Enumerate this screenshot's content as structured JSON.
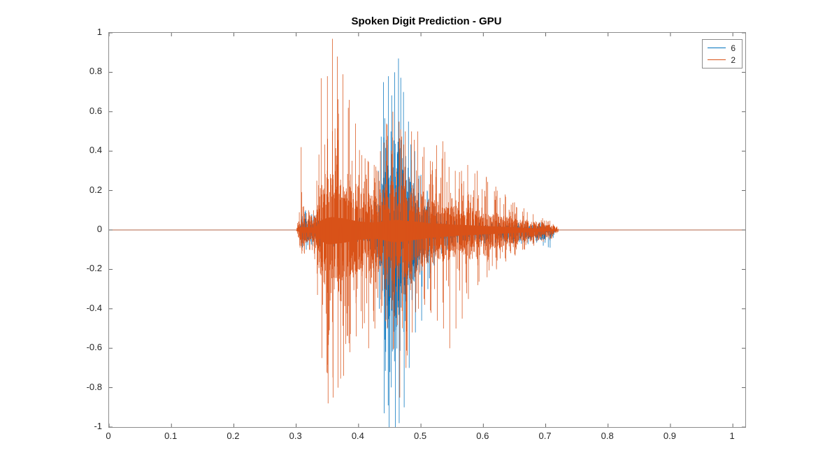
{
  "chart_data": {
    "type": "line",
    "subtype": "audio-waveform",
    "title": "Spoken Digit Prediction - GPU",
    "xlabel": "",
    "ylabel": "",
    "grid": false,
    "x_axis": {
      "min": 0,
      "max": 1.02,
      "tick_values": [
        0,
        0.1,
        0.2,
        0.3,
        0.4,
        0.5,
        0.6,
        0.7,
        0.8,
        0.9,
        1.0
      ],
      "tick_labels": [
        "0",
        "0.1",
        "0.2",
        "0.3",
        "0.4",
        "0.5",
        "0.6",
        "0.7",
        "0.8",
        "0.9",
        "1"
      ]
    },
    "y_axis": {
      "min": -1,
      "max": 1,
      "tick_values": [
        -1,
        -0.8,
        -0.6,
        -0.4,
        -0.2,
        0,
        0.2,
        0.4,
        0.6,
        0.8,
        1
      ],
      "tick_labels": [
        "-1",
        "-0.8",
        "-0.6",
        "-0.4",
        "-0.2",
        "0",
        "0.2",
        "0.4",
        "0.6",
        "0.8",
        "1"
      ]
    },
    "legend": {
      "position": "top-right",
      "entries": [
        {
          "label": "6",
          "color": "#0072BD"
        },
        {
          "label": "2",
          "color": "#D95319"
        }
      ]
    },
    "envelope_format": [
      "x",
      "dense_max",
      "dense_min",
      "peak_max",
      "peak_min"
    ],
    "series": [
      {
        "name": "6",
        "color": "#0072BD",
        "baseline_value": 0,
        "active_range": [
          0.304,
          0.716
        ],
        "envelope_points": [
          [
            0.304,
            0,
            0,
            0,
            0
          ],
          [
            0.308,
            0.05,
            -0.05,
            0.08,
            -0.09
          ],
          [
            0.315,
            0.06,
            -0.06,
            0.1,
            -0.1
          ],
          [
            0.325,
            0.05,
            -0.05,
            0.08,
            -0.08
          ],
          [
            0.34,
            0.04,
            -0.05,
            0.06,
            -0.09
          ],
          [
            0.37,
            0.03,
            -0.04,
            0.05,
            -0.1
          ],
          [
            0.4,
            0.03,
            -0.05,
            0.06,
            -0.11
          ],
          [
            0.42,
            0.05,
            -0.06,
            0.1,
            -0.14
          ],
          [
            0.432,
            0.1,
            -0.14,
            0.3,
            -0.4
          ],
          [
            0.44,
            0.28,
            -0.38,
            0.75,
            -0.93
          ],
          [
            0.448,
            0.38,
            -0.48,
            0.78,
            -1.0
          ],
          [
            0.458,
            0.45,
            -0.52,
            0.8,
            -1.0
          ],
          [
            0.464,
            0.45,
            -0.5,
            0.87,
            -0.98
          ],
          [
            0.472,
            0.35,
            -0.42,
            0.7,
            -0.9
          ],
          [
            0.48,
            0.26,
            -0.32,
            0.55,
            -0.7
          ],
          [
            0.49,
            0.18,
            -0.24,
            0.4,
            -0.52
          ],
          [
            0.5,
            0.12,
            -0.18,
            0.28,
            -0.46
          ],
          [
            0.51,
            0.09,
            -0.12,
            0.2,
            -0.3
          ],
          [
            0.52,
            0.06,
            -0.09,
            0.12,
            -0.18
          ],
          [
            0.532,
            0.04,
            -0.07,
            0.08,
            -0.12
          ],
          [
            0.55,
            0.03,
            -0.06,
            0.06,
            -0.09
          ],
          [
            0.58,
            0.025,
            -0.055,
            0.05,
            -0.08
          ],
          [
            0.62,
            0.02,
            -0.05,
            0.04,
            -0.07
          ],
          [
            0.66,
            0.02,
            -0.05,
            0.04,
            -0.07
          ],
          [
            0.695,
            0.02,
            -0.055,
            0.04,
            -0.08
          ],
          [
            0.706,
            0.02,
            -0.05,
            0.04,
            -0.09
          ],
          [
            0.712,
            0.01,
            -0.03,
            0.02,
            -0.05
          ],
          [
            0.716,
            0,
            0,
            0,
            0
          ]
        ]
      },
      {
        "name": "2",
        "color": "#D95319",
        "baseline_value": 0,
        "active_range": [
          0.3,
          0.722
        ],
        "envelope_points": [
          [
            0.3,
            0,
            0,
            0,
            0
          ],
          [
            0.305,
            0.05,
            -0.05,
            0.09,
            -0.09
          ],
          [
            0.308,
            0.07,
            -0.07,
            0.42,
            -0.12
          ],
          [
            0.312,
            0.07,
            -0.07,
            0.12,
            -0.12
          ],
          [
            0.32,
            0.06,
            -0.06,
            0.1,
            -0.1
          ],
          [
            0.328,
            0.06,
            -0.07,
            0.1,
            -0.12
          ],
          [
            0.333,
            0.1,
            -0.1,
            0.25,
            -0.33
          ],
          [
            0.34,
            0.22,
            -0.26,
            0.77,
            -0.65
          ],
          [
            0.35,
            0.28,
            -0.33,
            0.78,
            -0.88
          ],
          [
            0.358,
            0.3,
            -0.33,
            0.97,
            -0.85
          ],
          [
            0.366,
            0.28,
            -0.31,
            0.88,
            -0.8
          ],
          [
            0.375,
            0.27,
            -0.3,
            0.79,
            -0.74
          ],
          [
            0.385,
            0.24,
            -0.27,
            0.66,
            -0.62
          ],
          [
            0.395,
            0.21,
            -0.24,
            0.54,
            -0.54
          ],
          [
            0.405,
            0.19,
            -0.22,
            0.38,
            -0.5
          ],
          [
            0.415,
            0.18,
            -0.21,
            0.35,
            -0.6
          ],
          [
            0.425,
            0.17,
            -0.2,
            0.33,
            -0.5
          ],
          [
            0.435,
            0.19,
            -0.22,
            0.4,
            -0.42
          ],
          [
            0.445,
            0.21,
            -0.25,
            0.54,
            -0.5
          ],
          [
            0.455,
            0.23,
            -0.28,
            0.6,
            -0.6
          ],
          [
            0.465,
            0.23,
            -0.28,
            0.55,
            -0.85
          ],
          [
            0.475,
            0.21,
            -0.26,
            0.5,
            -0.7
          ],
          [
            0.485,
            0.2,
            -0.24,
            0.5,
            -0.52
          ],
          [
            0.495,
            0.19,
            -0.22,
            0.5,
            -0.4
          ],
          [
            0.505,
            0.17,
            -0.2,
            0.42,
            -0.38
          ],
          [
            0.515,
            0.15,
            -0.18,
            0.35,
            -0.42
          ],
          [
            0.525,
            0.15,
            -0.17,
            0.43,
            -0.46
          ],
          [
            0.535,
            0.14,
            -0.16,
            0.45,
            -0.5
          ],
          [
            0.545,
            0.13,
            -0.15,
            0.32,
            -0.6
          ],
          [
            0.555,
            0.12,
            -0.14,
            0.3,
            -0.5
          ],
          [
            0.565,
            0.12,
            -0.13,
            0.3,
            -0.45
          ],
          [
            0.575,
            0.11,
            -0.12,
            0.33,
            -0.35
          ],
          [
            0.59,
            0.1,
            -0.11,
            0.3,
            -0.28
          ],
          [
            0.605,
            0.09,
            -0.1,
            0.27,
            -0.24
          ],
          [
            0.62,
            0.08,
            -0.09,
            0.22,
            -0.2
          ],
          [
            0.635,
            0.07,
            -0.08,
            0.18,
            -0.16
          ],
          [
            0.65,
            0.06,
            -0.07,
            0.14,
            -0.13
          ],
          [
            0.665,
            0.05,
            -0.06,
            0.11,
            -0.1
          ],
          [
            0.68,
            0.04,
            -0.05,
            0.08,
            -0.08
          ],
          [
            0.695,
            0.035,
            -0.04,
            0.06,
            -0.06
          ],
          [
            0.708,
            0.025,
            -0.03,
            0.05,
            -0.05
          ],
          [
            0.716,
            0.015,
            -0.02,
            0.03,
            -0.03
          ],
          [
            0.722,
            0,
            0,
            0,
            0
          ]
        ]
      }
    ]
  }
}
